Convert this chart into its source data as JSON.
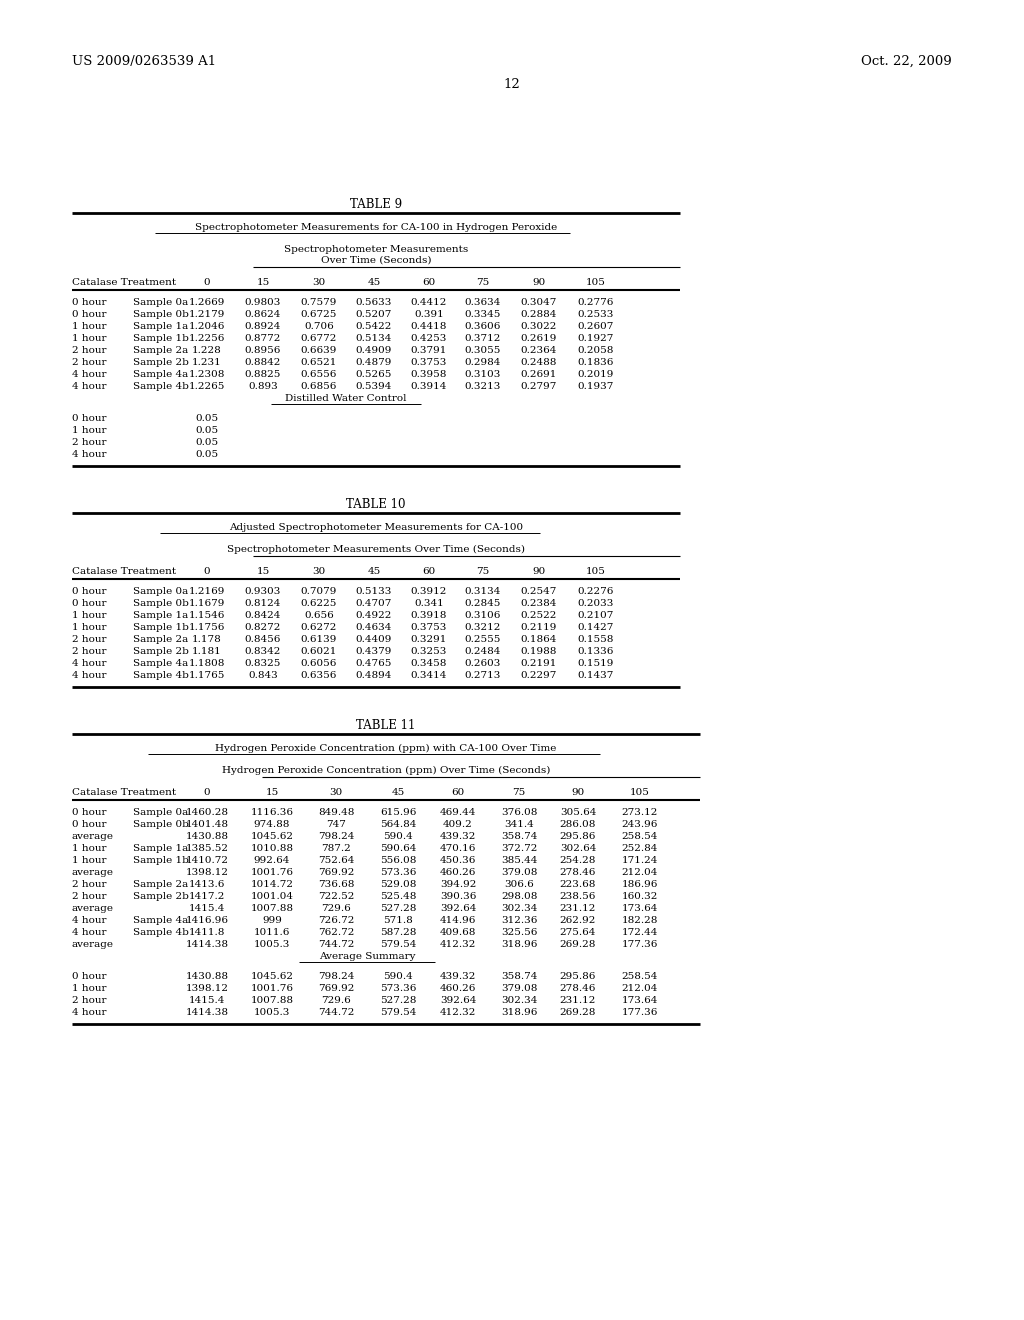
{
  "header_left": "US 2009/0263539 A1",
  "header_right": "Oct. 22, 2009",
  "page_num": "12",
  "table9_title": "TABLE 9",
  "table9_subtitle": "Spectrophotometer Measurements for CA-100 in Hydrogen Peroxide",
  "table9_col_header1": "Spectrophotometer Measurements",
  "table9_col_header2": "Over Time (Seconds)",
  "table9_cols": [
    "Catalase Treatment",
    "0",
    "15",
    "30",
    "45",
    "60",
    "75",
    "90",
    "105"
  ],
  "table9_data": [
    [
      "0 hour",
      "Sample 0a",
      "1.2669",
      "0.9803",
      "0.7579",
      "0.5633",
      "0.4412",
      "0.3634",
      "0.3047",
      "0.2776"
    ],
    [
      "0 hour",
      "Sample 0b",
      "1.2179",
      "0.8624",
      "0.6725",
      "0.5207",
      "0.391",
      "0.3345",
      "0.2884",
      "0.2533"
    ],
    [
      "1 hour",
      "Sample 1a",
      "1.2046",
      "0.8924",
      "0.706",
      "0.5422",
      "0.4418",
      "0.3606",
      "0.3022",
      "0.2607"
    ],
    [
      "1 hour",
      "Sample 1b",
      "1.2256",
      "0.8772",
      "0.6772",
      "0.5134",
      "0.4253",
      "0.3712",
      "0.2619",
      "0.1927"
    ],
    [
      "2 hour",
      "Sample 2a",
      "1.228",
      "0.8956",
      "0.6639",
      "0.4909",
      "0.3791",
      "0.3055",
      "0.2364",
      "0.2058"
    ],
    [
      "2 hour",
      "Sample 2b",
      "1.231",
      "0.8842",
      "0.6521",
      "0.4879",
      "0.3753",
      "0.2984",
      "0.2488",
      "0.1836"
    ],
    [
      "4 hour",
      "Sample 4a",
      "1.2308",
      "0.8825",
      "0.6556",
      "0.5265",
      "0.3958",
      "0.3103",
      "0.2691",
      "0.2019"
    ],
    [
      "4 hour",
      "Sample 4b",
      "1.2265",
      "0.893",
      "0.6856",
      "0.5394",
      "0.3914",
      "0.3213",
      "0.2797",
      "0.1937"
    ]
  ],
  "table9_distilled": "Distilled Water Control",
  "table9_distilled_data": [
    [
      "0 hour",
      "0.05"
    ],
    [
      "1 hour",
      "0.05"
    ],
    [
      "2 hour",
      "0.05"
    ],
    [
      "4 hour",
      "0.05"
    ]
  ],
  "table10_title": "TABLE 10",
  "table10_subtitle": "Adjusted Spectrophotometer Measurements for CA-100",
  "table10_col_header": "Spectrophotometer Measurements Over Time (Seconds)",
  "table10_cols": [
    "Catalase Treatment",
    "0",
    "15",
    "30",
    "45",
    "60",
    "75",
    "90",
    "105"
  ],
  "table10_data": [
    [
      "0 hour",
      "Sample 0a",
      "1.2169",
      "0.9303",
      "0.7079",
      "0.5133",
      "0.3912",
      "0.3134",
      "0.2547",
      "0.2276"
    ],
    [
      "0 hour",
      "Sample 0b",
      "1.1679",
      "0.8124",
      "0.6225",
      "0.4707",
      "0.341",
      "0.2845",
      "0.2384",
      "0.2033"
    ],
    [
      "1 hour",
      "Sample 1a",
      "1.1546",
      "0.8424",
      "0.656",
      "0.4922",
      "0.3918",
      "0.3106",
      "0.2522",
      "0.2107"
    ],
    [
      "1 hour",
      "Sample 1b",
      "1.1756",
      "0.8272",
      "0.6272",
      "0.4634",
      "0.3753",
      "0.3212",
      "0.2119",
      "0.1427"
    ],
    [
      "2 hour",
      "Sample 2a",
      "1.178",
      "0.8456",
      "0.6139",
      "0.4409",
      "0.3291",
      "0.2555",
      "0.1864",
      "0.1558"
    ],
    [
      "2 hour",
      "Sample 2b",
      "1.181",
      "0.8342",
      "0.6021",
      "0.4379",
      "0.3253",
      "0.2484",
      "0.1988",
      "0.1336"
    ],
    [
      "4 hour",
      "Sample 4a",
      "1.1808",
      "0.8325",
      "0.6056",
      "0.4765",
      "0.3458",
      "0.2603",
      "0.2191",
      "0.1519"
    ],
    [
      "4 hour",
      "Sample 4b",
      "1.1765",
      "0.843",
      "0.6356",
      "0.4894",
      "0.3414",
      "0.2713",
      "0.2297",
      "0.1437"
    ]
  ],
  "table11_title": "TABLE 11",
  "table11_subtitle": "Hydrogen Peroxide Concentration (ppm) with CA-100 Over Time",
  "table11_col_header": "Hydrogen Peroxide Concentration (ppm) Over Time (Seconds)",
  "table11_cols": [
    "Catalase Treatment",
    "0",
    "15",
    "30",
    "45",
    "60",
    "75",
    "90",
    "105"
  ],
  "table11_data": [
    [
      "0 hour",
      "Sample 0a",
      "1460.28",
      "1116.36",
      "849.48",
      "615.96",
      "469.44",
      "376.08",
      "305.64",
      "273.12"
    ],
    [
      "0 hour",
      "Sample 0b",
      "1401.48",
      "974.88",
      "747",
      "564.84",
      "409.2",
      "341.4",
      "286.08",
      "243.96"
    ],
    [
      "average",
      "",
      "1430.88",
      "1045.62",
      "798.24",
      "590.4",
      "439.32",
      "358.74",
      "295.86",
      "258.54"
    ],
    [
      "1 hour",
      "Sample 1a",
      "1385.52",
      "1010.88",
      "787.2",
      "590.64",
      "470.16",
      "372.72",
      "302.64",
      "252.84"
    ],
    [
      "1 hour",
      "Sample 1b",
      "1410.72",
      "992.64",
      "752.64",
      "556.08",
      "450.36",
      "385.44",
      "254.28",
      "171.24"
    ],
    [
      "average",
      "",
      "1398.12",
      "1001.76",
      "769.92",
      "573.36",
      "460.26",
      "379.08",
      "278.46",
      "212.04"
    ],
    [
      "2 hour",
      "Sample 2a",
      "1413.6",
      "1014.72",
      "736.68",
      "529.08",
      "394.92",
      "306.6",
      "223.68",
      "186.96"
    ],
    [
      "2 hour",
      "Sample 2b",
      "1417.2",
      "1001.04",
      "722.52",
      "525.48",
      "390.36",
      "298.08",
      "238.56",
      "160.32"
    ],
    [
      "average",
      "",
      "1415.4",
      "1007.88",
      "729.6",
      "527.28",
      "392.64",
      "302.34",
      "231.12",
      "173.64"
    ],
    [
      "4 hour",
      "Sample 4a",
      "1416.96",
      "999",
      "726.72",
      "571.8",
      "414.96",
      "312.36",
      "262.92",
      "182.28"
    ],
    [
      "4 hour",
      "Sample 4b",
      "1411.8",
      "1011.6",
      "762.72",
      "587.28",
      "409.68",
      "325.56",
      "275.64",
      "172.44"
    ],
    [
      "average",
      "",
      "1414.38",
      "1005.3",
      "744.72",
      "579.54",
      "412.32",
      "318.96",
      "269.28",
      "177.36"
    ]
  ],
  "table11_summary_label": "Average Summary",
  "table11_summary": [
    [
      "0 hour",
      "1430.88",
      "1045.62",
      "798.24",
      "590.4",
      "439.32",
      "358.74",
      "295.86",
      "258.54"
    ],
    [
      "1 hour",
      "1398.12",
      "1001.76",
      "769.92",
      "573.36",
      "460.26",
      "379.08",
      "278.46",
      "212.04"
    ],
    [
      "2 hour",
      "1415.4",
      "1007.88",
      "729.6",
      "527.28",
      "392.64",
      "302.34",
      "231.12",
      "173.64"
    ],
    [
      "4 hour",
      "1414.38",
      "1005.3",
      "744.72",
      "579.54",
      "412.32",
      "318.96",
      "269.28",
      "177.36"
    ]
  ]
}
